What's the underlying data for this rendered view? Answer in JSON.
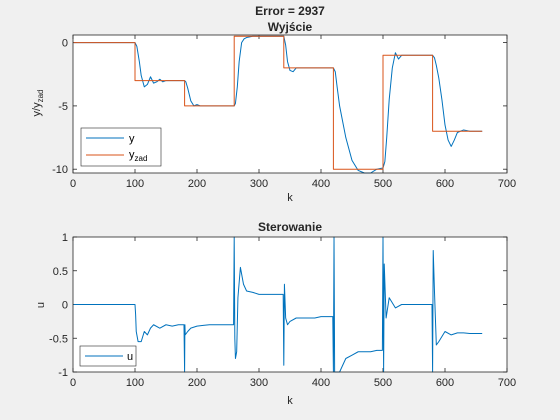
{
  "figure": {
    "supertitle": "Error = 2937"
  },
  "chart_data": [
    {
      "type": "line",
      "title": "Wyjście",
      "xlabel": "k",
      "ylabel_main": "y/y",
      "ylabel_sub": "zad",
      "xlim": [
        0,
        700
      ],
      "ylim": [
        -10.3,
        0.6
      ],
      "xticks": [
        0,
        100,
        200,
        300,
        400,
        500,
        600,
        700
      ],
      "yticks": [
        0,
        -5,
        -10
      ],
      "legend_position": "bottom-left",
      "series": [
        {
          "name": "y",
          "legend_main": "y",
          "legend_sub": "",
          "color": "#0072BD",
          "x": [
            1,
            100,
            103,
            107,
            110,
            115,
            120,
            125,
            130,
            135,
            140,
            145,
            150,
            160,
            170,
            180,
            182,
            185,
            190,
            195,
            200,
            205,
            210,
            220,
            230,
            240,
            250,
            260,
            262,
            265,
            268,
            272,
            276,
            280,
            290,
            300,
            310,
            320,
            330,
            340,
            343,
            346,
            350,
            355,
            360,
            370,
            380,
            390,
            400,
            420,
            423,
            426,
            430,
            440,
            450,
            460,
            470,
            480,
            490,
            500,
            503,
            506,
            510,
            515,
            520,
            525,
            530,
            540,
            550,
            560,
            570,
            580,
            583,
            586,
            590,
            595,
            600,
            605,
            610,
            615,
            620,
            630,
            640,
            650,
            660
          ],
          "y": [
            0,
            0,
            -0.3,
            -1.5,
            -2.6,
            -3.5,
            -3.3,
            -2.7,
            -3.2,
            -3.1,
            -2.9,
            -3.1,
            -3.0,
            -3.0,
            -3.0,
            -3.0,
            -3.1,
            -3.6,
            -4.6,
            -5.0,
            -4.9,
            -5.0,
            -5.0,
            -5.0,
            -5.0,
            -5.0,
            -5.0,
            -5.0,
            -4.8,
            -3.5,
            -1.5,
            0.0,
            0.3,
            0.4,
            0.5,
            0.5,
            0.5,
            0.5,
            0.5,
            0.5,
            -0.2,
            -1.5,
            -2.2,
            -2.3,
            -2.0,
            -2.0,
            -2.0,
            -2.0,
            -2.0,
            -2.0,
            -2.3,
            -3.5,
            -5.0,
            -7.5,
            -9.3,
            -10.1,
            -10.4,
            -10.3,
            -10.0,
            -9.9,
            -9.4,
            -7.5,
            -4.5,
            -2.0,
            -0.8,
            -1.3,
            -1.0,
            -1.0,
            -1.0,
            -1.0,
            -1.0,
            -1.0,
            -1.2,
            -1.8,
            -2.8,
            -4.5,
            -6.5,
            -7.7,
            -8.2,
            -7.7,
            -7.1,
            -6.9,
            -7.0,
            -7.0,
            -7.0
          ]
        },
        {
          "name": "yzad",
          "legend_main": "y",
          "legend_sub": "zad",
          "color": "#D95319",
          "x": [
            1,
            100,
            100,
            180,
            180,
            260,
            260,
            340,
            340,
            420,
            420,
            500,
            500,
            580,
            580,
            660
          ],
          "y": [
            0,
            0,
            -3,
            -3,
            -5,
            -5,
            0.5,
            0.5,
            -2,
            -2,
            -10,
            -10,
            -1,
            -1,
            -7,
            -7
          ]
        }
      ]
    },
    {
      "type": "line",
      "title": "Sterowanie",
      "xlabel": "k",
      "ylabel": "u",
      "xlim": [
        0,
        700
      ],
      "ylim": [
        -1,
        1
      ],
      "xticks": [
        0,
        100,
        200,
        300,
        400,
        500,
        600,
        700
      ],
      "yticks": [
        1,
        0.5,
        0,
        -0.5,
        -1
      ],
      "ytick_labels": [
        "1",
        "0.5",
        "0",
        "-0.5",
        "-1"
      ],
      "legend_position": "bottom-left",
      "series": [
        {
          "name": "u",
          "legend_main": "u",
          "color": "#0072BD",
          "x": [
            1,
            100,
            101,
            102,
            105,
            110,
            115,
            120,
            125,
            130,
            140,
            150,
            160,
            170,
            179,
            180,
            180.5,
            181,
            185,
            190,
            200,
            210,
            220,
            230,
            240,
            250,
            259,
            260,
            261,
            262,
            264,
            266,
            270,
            275,
            280,
            290,
            300,
            310,
            320,
            330,
            339,
            340,
            341,
            343,
            346,
            350,
            360,
            370,
            380,
            390,
            400,
            410,
            419,
            420,
            421,
            422,
            425,
            430,
            440,
            450,
            460,
            470,
            480,
            490,
            499,
            500,
            501,
            502,
            505,
            510,
            520,
            530,
            540,
            550,
            560,
            570,
            579,
            580,
            581,
            583,
            586,
            590,
            600,
            610,
            620,
            630,
            640,
            650,
            660
          ],
          "y": [
            0,
            0,
            -0.15,
            -0.4,
            -0.55,
            -0.55,
            -0.4,
            -0.45,
            -0.35,
            -0.3,
            -0.35,
            -0.3,
            -0.32,
            -0.3,
            -0.3,
            -1.0,
            -0.3,
            -0.45,
            -0.4,
            -0.35,
            -0.32,
            -0.31,
            -0.3,
            -0.3,
            -0.3,
            -0.3,
            -0.3,
            1.0,
            -0.5,
            -0.8,
            -0.7,
            0.1,
            0.55,
            0.3,
            0.2,
            0.18,
            0.15,
            0.15,
            0.15,
            0.15,
            0.15,
            -0.9,
            0.3,
            -0.2,
            -0.3,
            -0.25,
            -0.2,
            -0.2,
            -0.2,
            -0.2,
            -0.18,
            -0.18,
            -0.18,
            -1.0,
            1.0,
            -1.0,
            -1.0,
            -1.0,
            -0.8,
            -0.75,
            -0.7,
            -0.7,
            -0.7,
            -0.68,
            -0.68,
            1.0,
            -1.0,
            0.6,
            -0.2,
            0.1,
            -0.05,
            0.0,
            0.0,
            0.0,
            0.0,
            0.0,
            0.0,
            -1.0,
            0.8,
            0.2,
            -0.6,
            -0.55,
            -0.4,
            -0.45,
            -0.42,
            -0.42,
            -0.43,
            -0.43,
            -0.43
          ]
        }
      ]
    }
  ]
}
